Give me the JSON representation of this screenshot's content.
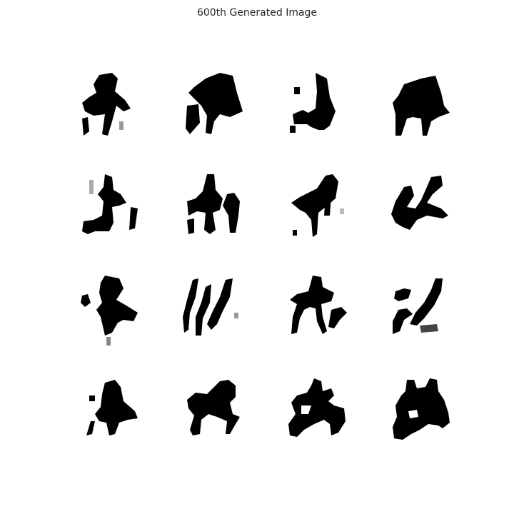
{
  "figure": {
    "title": "600th Generated Image"
  },
  "grid": {
    "rows": 4,
    "cols": 4,
    "tile_count": 16
  }
}
